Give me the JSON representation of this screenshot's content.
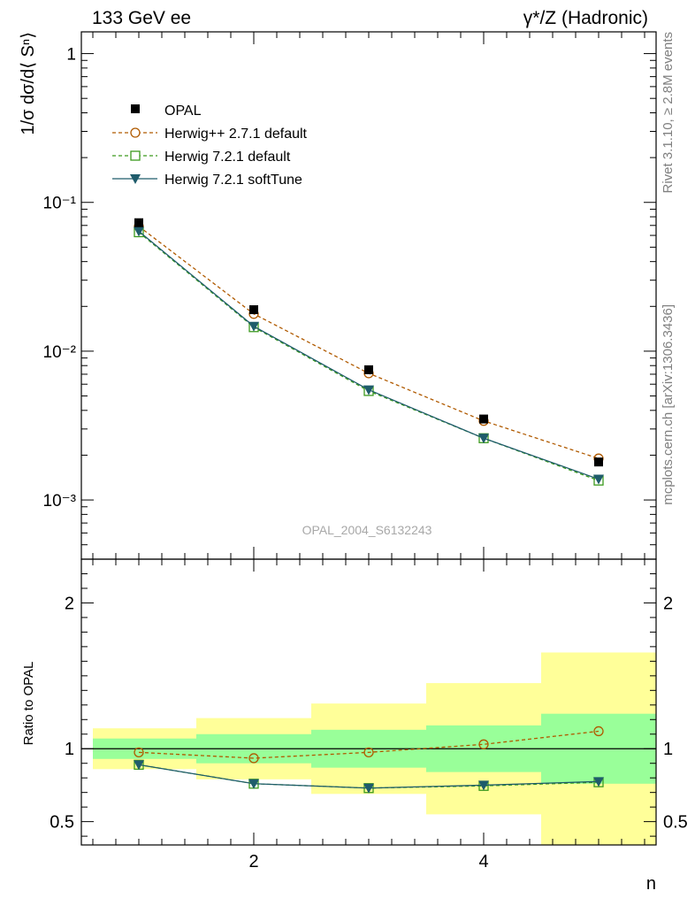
{
  "header": {
    "left": "133 GeV ee",
    "right_prefix": "γ*/Z",
    "right_suffix": " (Hadronic)"
  },
  "side_text": {
    "upper": "Rivet 3.1.10, ≥ 2.8M events",
    "lower": "mcplots.cern.ch [arXiv:1306.3436]"
  },
  "watermark": "OPAL_2004_S6132243",
  "colors": {
    "data": "#000000",
    "herwigpp": "#b05a00",
    "herwig_default": "#3c9a1e",
    "herwig_soft": "#1f5c6b",
    "band_inner": "#99ff99",
    "band_outer": "#ffff99"
  },
  "chart_data": [
    {
      "type": "line",
      "panel": "main",
      "ylabel": "1/σ dσ/d⟨ Sⁿ⟩",
      "yscale": "log",
      "ylim": [
        0.0004,
        1.4
      ],
      "xlim": [
        0.5,
        5.5
      ],
      "y_ticks": [
        {
          "value": 1,
          "label": "1"
        },
        {
          "value": 0.1,
          "label": "10⁻¹"
        },
        {
          "value": 0.01,
          "label": "10⁻²"
        },
        {
          "value": 0.001,
          "label": "10⁻³"
        }
      ],
      "legend_position": "top-left",
      "x": [
        1,
        2,
        3,
        4,
        5
      ],
      "series": [
        {
          "name": "OPAL",
          "style": "markers",
          "marker": "filled-square",
          "color_key": "data",
          "values": [
            0.073,
            0.019,
            0.0075,
            0.0035,
            0.0018
          ]
        },
        {
          "name": "Herwig++ 2.7.1 default",
          "style": "dashed",
          "marker": "open-circle",
          "color_key": "herwigpp",
          "values": [
            0.069,
            0.0178,
            0.0071,
            0.0034,
            0.0019
          ]
        },
        {
          "name": "Herwig 7.2.1 default",
          "style": "dashed",
          "marker": "open-square",
          "color_key": "herwig_default",
          "values": [
            0.063,
            0.0145,
            0.0054,
            0.0026,
            0.00135
          ]
        },
        {
          "name": "Herwig 7.2.1 softTune",
          "style": "solid",
          "marker": "filled-triangle-down",
          "color_key": "herwig_soft",
          "values": [
            0.064,
            0.0147,
            0.0055,
            0.0026,
            0.00138
          ]
        }
      ]
    },
    {
      "type": "line",
      "panel": "ratio",
      "ylabel": "Ratio to OPAL",
      "xlabel": "n",
      "ylim": [
        0.34,
        2.3
      ],
      "xlim": [
        0.5,
        5.5
      ],
      "x_ticks": [
        {
          "value": 2,
          "label": "2"
        },
        {
          "value": 4,
          "label": "4"
        }
      ],
      "y_ticks": [
        {
          "value": 0.5,
          "label": "0.5"
        },
        {
          "value": 1,
          "label": "1"
        },
        {
          "value": 2,
          "label": "2"
        }
      ],
      "reference_line": 1,
      "bands": [
        {
          "xlo": 0.6,
          "xhi": 1.5,
          "inner": [
            0.93,
            1.07
          ],
          "outer": [
            0.86,
            1.14
          ]
        },
        {
          "xlo": 1.5,
          "xhi": 2.5,
          "inner": [
            0.9,
            1.1
          ],
          "outer": [
            0.79,
            1.21
          ]
        },
        {
          "xlo": 2.5,
          "xhi": 3.5,
          "inner": [
            0.87,
            1.13
          ],
          "outer": [
            0.69,
            1.31
          ]
        },
        {
          "xlo": 3.5,
          "xhi": 4.5,
          "inner": [
            0.84,
            1.16
          ],
          "outer": [
            0.55,
            1.45
          ]
        },
        {
          "xlo": 4.5,
          "xhi": 5.5,
          "inner": [
            0.76,
            1.24
          ],
          "outer": [
            0.34,
            1.66
          ]
        }
      ],
      "x": [
        1,
        2,
        3,
        4,
        5
      ],
      "series": [
        {
          "name": "Herwig++ 2.7.1 default",
          "style": "dashed",
          "marker": "open-circle",
          "color_key": "herwigpp",
          "values": [
            0.975,
            0.935,
            0.975,
            1.03,
            1.12
          ]
        },
        {
          "name": "Herwig 7.2.1 default",
          "style": "dashed",
          "marker": "open-square",
          "color_key": "herwig_default",
          "values": [
            0.89,
            0.76,
            0.73,
            0.745,
            0.77
          ]
        },
        {
          "name": "Herwig 7.2.1 softTune",
          "style": "solid",
          "marker": "filled-triangle-down",
          "color_key": "herwig_soft",
          "values": [
            0.89,
            0.76,
            0.73,
            0.75,
            0.775
          ]
        }
      ]
    }
  ]
}
